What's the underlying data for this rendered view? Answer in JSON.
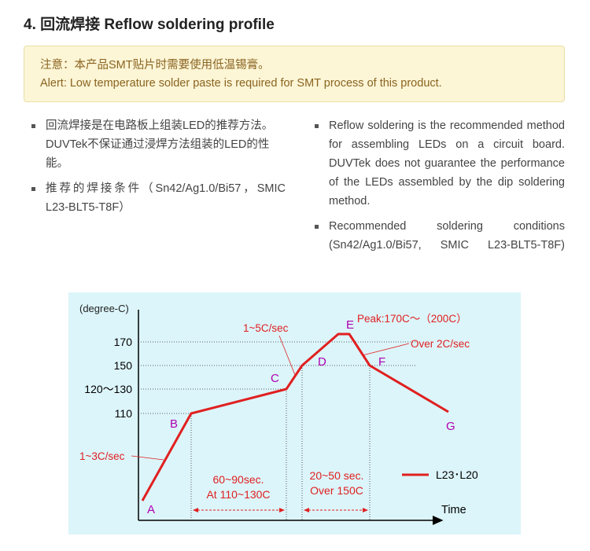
{
  "heading": "4. 回流焊接 Reflow soldering profile",
  "alert": {
    "line_cn": "注意：本产品SMT贴片时需要使用低温锡膏。",
    "line_en": "Alert: Low temperature solder paste is required for SMT process of this product."
  },
  "left_items": [
    "回流焊接是在电路板上组装LED的推荐方法。 DUVTek不保证通过浸焊方法组装的LED的性能。",
    "推荐的焊接条件（Sn42/Ag1.0/Bi57，SMIC L23-BLT5-T8F）"
  ],
  "right_items": [
    "Reflow soldering is the recommended method for assembling LEDs on a circuit board. DUVTek does not guarantee the performance of the LEDs assembled by the dip soldering method.",
    "Recommended soldering conditions (Sn42/Ag1.0/Bi57, SMIC L23-BLT5-T8F)"
  ],
  "chart_data": {
    "type": "line",
    "ylabel": "(degree-C)",
    "xlabel": "Time",
    "y_ticks": [
      "170",
      "150",
      "120～130",
      "110"
    ],
    "series": [
      {
        "name": "L23･L20",
        "color": "#e02020",
        "points": [
          {
            "label": "A",
            "temp": 25
          },
          {
            "label": "B",
            "temp": 110
          },
          {
            "label": "C",
            "temp": 128
          },
          {
            "label": "D",
            "temp": 150
          },
          {
            "label": "E",
            "temp": 170
          },
          {
            "label": "F",
            "temp": 150
          },
          {
            "label": "G",
            "temp": 112
          }
        ]
      }
    ],
    "annotations": {
      "ramp_up": "1~3C/sec",
      "ramp_cd": "1~5C/sec",
      "peak": "Peak:170C～（200C）",
      "ramp_down": "Over 2C/sec",
      "soak_line1": "60~90sec.",
      "soak_line2": "At 110~130C",
      "reflow_line1": "20~50 sec.",
      "reflow_line2": "Over 150C"
    },
    "colors": {
      "curve": "#e02020",
      "point_label": "#b000b0",
      "annotation": "#e02020",
      "background": "#dcf5fa"
    }
  }
}
